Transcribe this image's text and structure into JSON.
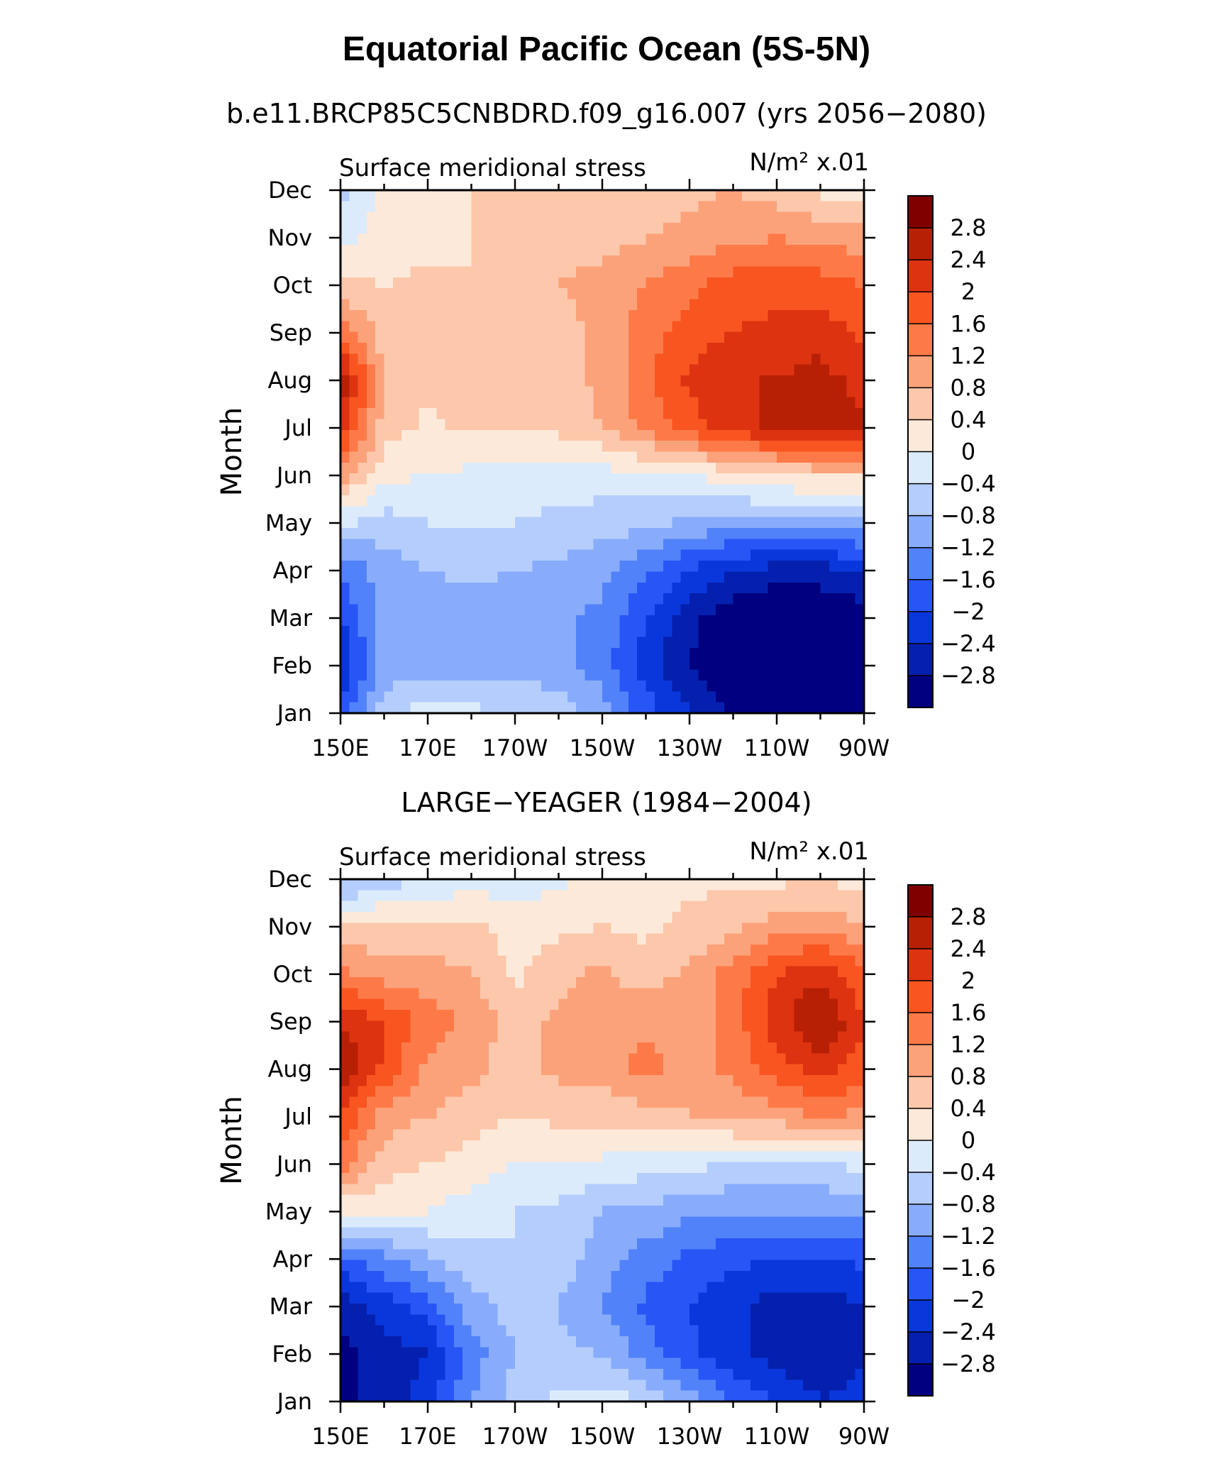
{
  "title": "Equatorial Pacific Ocean (5S-5N)",
  "colorbar": {
    "levels": [
      "2.8",
      "2.4",
      "2",
      "1.6",
      "1.2",
      "0.8",
      "0.4",
      "0",
      "−0.4",
      "−0.8",
      "−1.2",
      "−1.6",
      "−2",
      "−2.4",
      "−2.8"
    ],
    "colors": [
      "#800000",
      "#b82005",
      "#dd3310",
      "#f85520",
      "#fd7a48",
      "#fca27a",
      "#fcc7aa",
      "#fde9d9",
      "#dcebfb",
      "#b4cdfd",
      "#88acfb",
      "#5282fa",
      "#2855f5",
      "#0a37dc",
      "#0520ae",
      "#000080"
    ]
  },
  "chart_data": [
    {
      "type": "heatmap",
      "subtitle": "b.e11.BRCP85C5CNBDRD.f09_g16.007 (yrs 2056−2080)",
      "variable_label": "Surface meridional stress",
      "units_label": "N/m² x.01",
      "ylabel": "Month",
      "x_ticks": [
        "150E",
        "170E",
        "170W",
        "150W",
        "130W",
        "110W",
        "90W"
      ],
      "y_ticks": [
        "Jan",
        "Feb",
        "Mar",
        "Apr",
        "May",
        "Jun",
        "Jul",
        "Aug",
        "Sep",
        "Oct",
        "Nov",
        "Dec"
      ],
      "x_lon": [
        150,
        160,
        170,
        180,
        190,
        200,
        210,
        220,
        230,
        240,
        250,
        260,
        270
      ],
      "rows": [
        [
          -1.8,
          -0.6,
          -0.2,
          -0.3,
          -0.4,
          -0.5,
          -1.0,
          -1.8,
          -2.4,
          -2.9,
          -3.1,
          -3.1,
          -2.8
        ],
        [
          -2.4,
          -1.0,
          -1.0,
          -1.0,
          -1.0,
          -1.1,
          -1.4,
          -2.2,
          -2.8,
          -3.1,
          -3.2,
          -3.2,
          -3.0
        ],
        [
          -2.0,
          -1.0,
          -1.0,
          -1.0,
          -1.0,
          -1.1,
          -1.3,
          -2.0,
          -2.7,
          -3.1,
          -3.2,
          -3.2,
          -3.0
        ],
        [
          -1.6,
          -1.0,
          -0.8,
          -0.7,
          -0.8,
          -0.9,
          -1.1,
          -1.5,
          -2.0,
          -2.4,
          -2.6,
          -2.6,
          -2.4
        ],
        [
          -0.3,
          -0.6,
          -0.4,
          -0.4,
          -0.4,
          -0.5,
          -0.6,
          -0.7,
          -0.9,
          -1.0,
          -1.0,
          -1.0,
          -0.9
        ],
        [
          1.0,
          0.1,
          0.0,
          -0.1,
          -0.2,
          -0.2,
          -0.2,
          -0.1,
          0.0,
          0.2,
          0.4,
          0.5,
          0.5
        ],
        [
          2.2,
          0.6,
          0.3,
          0.5,
          0.4,
          0.5,
          0.8,
          1.3,
          1.8,
          2.2,
          2.5,
          2.6,
          2.5
        ],
        [
          2.8,
          0.8,
          0.5,
          0.5,
          0.5,
          0.6,
          0.9,
          1.5,
          2.1,
          2.4,
          2.4,
          2.6,
          2.2
        ],
        [
          1.5,
          0.6,
          0.5,
          0.5,
          0.5,
          0.6,
          0.9,
          1.4,
          1.8,
          2.0,
          2.1,
          2.2,
          1.9
        ],
        [
          0.5,
          0.4,
          0.5,
          0.4,
          0.4,
          0.8,
          1.0,
          1.2,
          1.5,
          1.8,
          1.9,
          1.8,
          1.6
        ],
        [
          -0.2,
          0.2,
          0.3,
          0.4,
          0.4,
          0.5,
          0.6,
          0.8,
          0.9,
          1.1,
          1.2,
          1.1,
          1.0
        ],
        [
          -0.5,
          0.1,
          0.3,
          0.4,
          0.4,
          0.4,
          0.5,
          0.6,
          0.7,
          0.8,
          0.6,
          0.3,
          0.1
        ]
      ]
    },
    {
      "type": "heatmap",
      "subtitle": "LARGE−YEAGER (1984−2004)",
      "variable_label": "Surface meridional stress",
      "units_label": "N/m² x.01",
      "ylabel": "Month",
      "x_ticks": [
        "150E",
        "170E",
        "170W",
        "150W",
        "130W",
        "110W",
        "90W"
      ],
      "y_ticks": [
        "Jan",
        "Feb",
        "Mar",
        "Apr",
        "May",
        "Jun",
        "Jul",
        "Aug",
        "Sep",
        "Oct",
        "Nov",
        "Dec"
      ],
      "x_lon": [
        150,
        160,
        170,
        180,
        190,
        200,
        210,
        220,
        230,
        240,
        250,
        260,
        270
      ],
      "rows": [
        [
          -3.0,
          -2.6,
          -2.2,
          -1.2,
          -0.6,
          -0.3,
          -0.2,
          -0.4,
          -1.0,
          -1.6,
          -2.0,
          -2.4,
          -2.2
        ],
        [
          -3.0,
          -2.6,
          -2.4,
          -1.4,
          -0.8,
          -0.7,
          -0.8,
          -1.4,
          -1.9,
          -2.3,
          -2.6,
          -2.7,
          -2.5
        ],
        [
          -2.6,
          -2.2,
          -1.8,
          -1.0,
          -0.6,
          -0.8,
          -1.2,
          -1.7,
          -2.0,
          -2.3,
          -2.6,
          -2.6,
          -2.4
        ],
        [
          -1.8,
          -1.3,
          -0.9,
          -0.5,
          -0.4,
          -0.6,
          -1.0,
          -1.4,
          -1.7,
          -1.9,
          -2.0,
          -2.0,
          -1.9
        ],
        [
          0.1,
          0.1,
          0.0,
          -0.2,
          -0.4,
          -0.5,
          -0.8,
          -0.9,
          -1.1,
          -1.2,
          -1.2,
          -1.2,
          -1.1
        ],
        [
          1.4,
          0.6,
          0.4,
          0.2,
          0.0,
          0.0,
          -0.1,
          -0.2,
          -0.3,
          -0.4,
          -0.4,
          -0.4,
          -0.3
        ],
        [
          2.0,
          1.0,
          0.8,
          0.6,
          0.4,
          0.5,
          0.5,
          0.6,
          0.8,
          0.9,
          1.0,
          1.2,
          1.1
        ],
        [
          2.8,
          1.9,
          1.1,
          0.9,
          0.6,
          0.9,
          1.0,
          1.4,
          1.0,
          1.3,
          1.8,
          2.2,
          1.8
        ],
        [
          2.4,
          2.0,
          1.4,
          1.1,
          0.6,
          0.9,
          0.9,
          1.1,
          1.0,
          1.4,
          2.2,
          2.9,
          2.0
        ],
        [
          1.3,
          1.0,
          1.0,
          0.8,
          0.3,
          0.7,
          0.9,
          0.6,
          0.9,
          1.4,
          2.0,
          2.3,
          1.7
        ],
        [
          0.5,
          0.5,
          0.5,
          0.5,
          0.2,
          0.3,
          0.4,
          0.3,
          0.5,
          0.7,
          1.0,
          1.1,
          0.8
        ],
        [
          -1.0,
          -0.6,
          -0.4,
          -0.2,
          -0.2,
          -0.1,
          0.2,
          0.3,
          0.3,
          0.3,
          0.3,
          0.4,
          0.2
        ]
      ]
    }
  ]
}
